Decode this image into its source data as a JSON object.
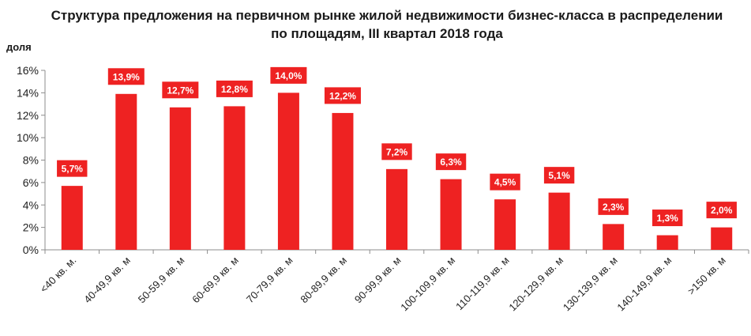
{
  "chart_data": {
    "type": "bar",
    "title": "Структура  предложения на первичном рынке жилой недвижимости бизнес-класса в распределении по площадям, III квартал 2018 года",
    "ylabel": "доля",
    "xlabel": "",
    "ylim": [
      0,
      16
    ],
    "yticks": [
      "0%",
      "2%",
      "4%",
      "6%",
      "8%",
      "10%",
      "12%",
      "14%",
      "16%"
    ],
    "grid": false,
    "categories": [
      "<40 кв. м.",
      "40-49,9 кв. м",
      "50-59,9 кв. м",
      "60-69,9 кв. м",
      "70-79,9 кв. м",
      "80-89,9 кв. м",
      "90-99,9 кв. м",
      "100-109,9 кв. м",
      "110-119,9 кв. м",
      "120-129,9 кв. м",
      "130-139,9 кв. м",
      "140-149,9 кв. м",
      ">150 кв. м"
    ],
    "values": [
      5.7,
      13.9,
      12.7,
      12.8,
      14.0,
      12.2,
      7.2,
      6.3,
      4.5,
      5.1,
      2.3,
      1.3,
      2.0
    ],
    "labels": [
      "5,7%",
      "13,9%",
      "12,7%",
      "12,8%",
      "14,0%",
      "12,2%",
      "7,2%",
      "6,3%",
      "4,5%",
      "5,1%",
      "2,3%",
      "1,3%",
      "2,0%"
    ],
    "colors": {
      "bar": "#ee2222",
      "label_bg": "#ee2222",
      "label_text": "#ffffff",
      "axis": "#8c8c8c"
    }
  }
}
